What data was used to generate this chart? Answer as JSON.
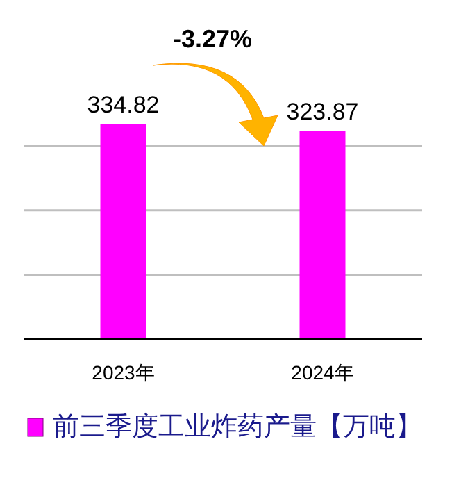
{
  "chart_data": {
    "type": "bar",
    "categories": [
      "2023年",
      "2024年"
    ],
    "series": [
      {
        "name": "前三季度工业炸药产量【万吨】",
        "color": "#ff00ff",
        "values": [
          334.82,
          323.87
        ]
      }
    ],
    "data_labels": true,
    "annotations": [
      "-3.27%"
    ],
    "grid": "y",
    "yticks": [
      {
        "value": 0,
        "label": null
      },
      {
        "value": 100,
        "label": null
      },
      {
        "value": 200,
        "label": null
      },
      {
        "value": 300,
        "label": null
      }
    ],
    "tick_labels": "x",
    "legend": "bottom"
  }
}
